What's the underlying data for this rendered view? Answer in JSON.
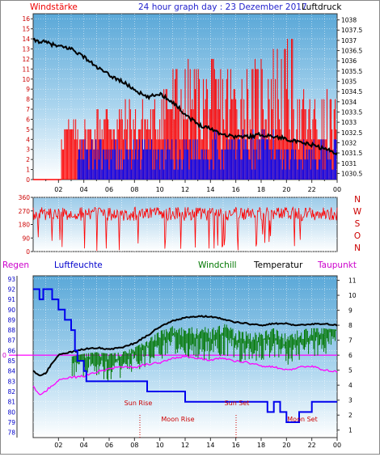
{
  "header": {
    "left_label": "Windstärke",
    "title": "24 hour graph day : 23 Dezember 2017",
    "right_label": "Luftdruck"
  },
  "legend": {
    "regen": "Regen",
    "luftfeuchte": "Luftfeuchte",
    "windchill": "Windchill",
    "temperatur": "Temperatur",
    "taupunkt": "Taupunkt"
  },
  "direction_letters": [
    "N",
    "W",
    "S",
    "O",
    "N"
  ],
  "annotations": {
    "sun_rise": "Sun Rise",
    "moon_rise": "Moon Rise",
    "sun_set": "Sun Set",
    "moon_set": "Moon Set"
  },
  "colors": {
    "wind_gust": "#ff0000",
    "wind_avg": "#0000ee",
    "pressure": "#000000",
    "direction": "#ff0000",
    "humidity": "#0000ee",
    "windchill": "#007700",
    "temperature": "#000000",
    "dewpoint": "#ff00ff",
    "zero_line": "#ff00ff"
  },
  "chart_data": [
    {
      "type": "line",
      "title": "24 hour graph day : 23 Dezember 2017",
      "x_ticks": [
        "02",
        "04",
        "06",
        "08",
        "10",
        "12",
        "14",
        "16",
        "18",
        "20",
        "22",
        "00"
      ],
      "xlim": [
        0,
        24
      ],
      "left_axis": {
        "label": "Windstärke",
        "ticks": [
          0,
          1,
          2,
          3,
          4,
          5,
          6,
          7,
          8,
          9,
          10,
          11,
          12,
          13,
          14,
          15,
          16
        ],
        "ylim": [
          0,
          16.5
        ]
      },
      "right_axis": {
        "label": "Luftdruck",
        "ticks": [
          "1030.5",
          "1031",
          "1031.5",
          "1032",
          "1032.5",
          "1033",
          "1033.5",
          "1034",
          "1034.5",
          "1035",
          "1035.5",
          "1036",
          "1036.5",
          "1037",
          "1037.5",
          "1038"
        ],
        "ylim": [
          1030.2,
          1038.3
        ]
      },
      "series": [
        {
          "name": "Luftdruck",
          "x": [
            0,
            1,
            2,
            3,
            4,
            5,
            6,
            7,
            8,
            9,
            10,
            11,
            12,
            13,
            14,
            15,
            16,
            17,
            18,
            19,
            20,
            21,
            22,
            23,
            24
          ],
          "values": [
            1037.0,
            1036.9,
            1036.7,
            1036.6,
            1036.2,
            1035.7,
            1035.3,
            1035.0,
            1034.6,
            1034.2,
            1034.4,
            1034.0,
            1033.4,
            1032.9,
            1032.7,
            1032.4,
            1032.3,
            1032.3,
            1032.4,
            1032.3,
            1032.2,
            1032.0,
            1031.9,
            1031.7,
            1031.5
          ]
        }
      ]
    },
    {
      "type": "line",
      "left_axis": {
        "ticks": [
          0,
          90,
          180,
          270,
          360
        ],
        "ylim": [
          0,
          360
        ]
      },
      "xlim": [
        0,
        24
      ]
    },
    {
      "type": "line",
      "x_ticks": [
        "02",
        "04",
        "06",
        "08",
        "10",
        "12",
        "14",
        "16",
        "18",
        "20",
        "22",
        "00"
      ],
      "xlim": [
        0,
        24
      ],
      "left_axis": {
        "label": "Luftfeuchte",
        "ticks": [
          78,
          79,
          80,
          81,
          82,
          83,
          84,
          85,
          86,
          87,
          88,
          89,
          90,
          91,
          92,
          93
        ],
        "ylim": [
          77.5,
          93.3
        ]
      },
      "right_axis": {
        "label": "Temperatur",
        "ticks": [
          1,
          2,
          3,
          4,
          5,
          6,
          7,
          8,
          9,
          10,
          11
        ],
        "ylim": [
          0.5,
          11.3
        ]
      },
      "zero_label": "0",
      "series": [
        {
          "name": "Luftfeuchte",
          "x": [
            0,
            0.5,
            0.8,
            1.5,
            2.0,
            2.5,
            3.0,
            3.3,
            3.5,
            4.0,
            4.2,
            4.5,
            5.0,
            6.0,
            7.0,
            8.0,
            8.5,
            9.0,
            10.0,
            11.0,
            12.0,
            13.0,
            14.0,
            15.0,
            15.5,
            16.0,
            16.5,
            17.0,
            18.0,
            18.5,
            19.0,
            19.5,
            20.0,
            21.0,
            21.5,
            22.0,
            23.0,
            24.0
          ],
          "values": [
            92,
            91,
            92,
            91,
            90,
            89,
            88,
            86,
            85,
            84,
            83,
            83,
            83,
            83,
            83,
            83,
            83,
            82,
            82,
            82,
            81,
            81,
            81,
            81,
            81,
            81,
            81,
            81,
            81,
            80,
            81,
            80,
            79,
            80,
            80,
            81,
            81,
            81
          ]
        },
        {
          "name": "Temperatur",
          "x": [
            0,
            0.5,
            1.0,
            1.5,
            2.0,
            3.0,
            4.0,
            5.0,
            6.0,
            7.0,
            8.0,
            9.0,
            10.0,
            11.0,
            12.0,
            13.0,
            14.0,
            15.0,
            16.0,
            17.0,
            18.0,
            19.0,
            20.0,
            21.0,
            22.0,
            23.0,
            24.0
          ],
          "values": [
            5.0,
            4.6,
            4.8,
            5.5,
            6.0,
            6.2,
            6.4,
            6.5,
            6.4,
            6.5,
            6.8,
            7.3,
            7.9,
            8.3,
            8.5,
            8.6,
            8.6,
            8.4,
            8.2,
            8.1,
            8.0,
            8.1,
            8.1,
            8.0,
            8.1,
            8.1,
            8.0
          ]
        },
        {
          "name": "Windchill",
          "x": [
            0,
            3,
            4,
            5,
            6,
            7,
            8,
            9,
            10,
            11,
            12,
            13,
            14,
            15,
            16,
            17,
            18,
            19,
            20,
            21,
            22,
            23,
            24
          ],
          "values": [
            5.0,
            6.0,
            5.8,
            6.0,
            5.6,
            5.8,
            6.2,
            6.6,
            7.0,
            7.4,
            7.0,
            7.2,
            7.0,
            7.4,
            7.0,
            6.8,
            7.0,
            7.1,
            6.6,
            7.0,
            7.2,
            7.4,
            7.8
          ]
        },
        {
          "name": "Taupunkt",
          "x": [
            0,
            0.5,
            1.0,
            1.5,
            2.0,
            3.0,
            4.0,
            5.0,
            6.0,
            7.0,
            8.0,
            9.0,
            10.0,
            11.0,
            12.0,
            13.0,
            14.0,
            15.0,
            16.0,
            17.0,
            18.0,
            19.0,
            20.0,
            21.0,
            22.0,
            23.0,
            24.0
          ],
          "values": [
            4.0,
            3.3,
            3.6,
            4.0,
            4.3,
            4.5,
            4.6,
            4.9,
            5.1,
            5.2,
            5.2,
            5.4,
            5.5,
            5.8,
            5.9,
            5.8,
            5.7,
            5.8,
            5.6,
            5.5,
            5.3,
            5.2,
            5.0,
            5.2,
            5.3,
            5.0,
            4.9
          ]
        }
      ]
    }
  ]
}
